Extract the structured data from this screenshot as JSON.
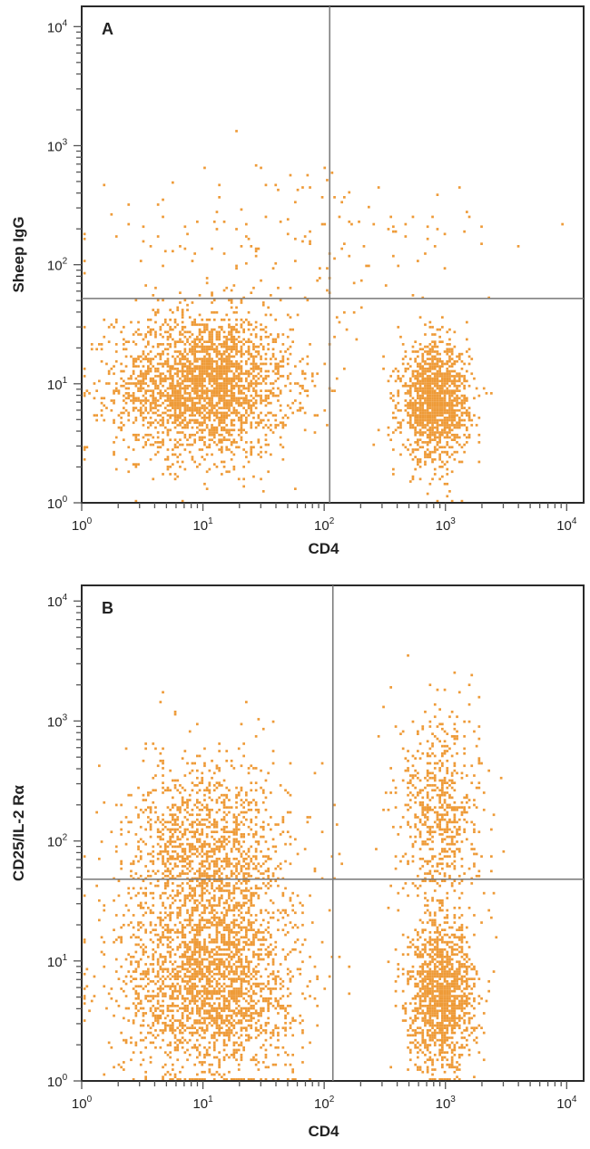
{
  "chart_data": [
    {
      "type": "scatter",
      "panel_label": "A",
      "xlabel": "CD4",
      "ylabel": "Sheep IgG",
      "x_scale": "log",
      "y_scale": "log",
      "xlim": [
        1,
        13800
      ],
      "ylim": [
        1,
        14800
      ],
      "x_ticks": [
        {
          "base": "10",
          "exp": "0"
        },
        {
          "base": "10",
          "exp": "1"
        },
        {
          "base": "10",
          "exp": "2"
        },
        {
          "base": "10",
          "exp": "3"
        },
        {
          "base": "10",
          "exp": "4"
        }
      ],
      "y_ticks": [
        {
          "base": "10",
          "exp": "0"
        },
        {
          "base": "10",
          "exp": "1"
        },
        {
          "base": "10",
          "exp": "2"
        },
        {
          "base": "10",
          "exp": "3"
        },
        {
          "base": "10",
          "exp": "4"
        }
      ],
      "quadrant_gate": {
        "x": 111,
        "y": 52
      },
      "point_color": "#EE9B38",
      "grid": false,
      "populations": [
        {
          "center": [
            10,
            10
          ],
          "spread_decades": [
            0.36,
            0.3
          ],
          "events": 2600
        },
        {
          "center": [
            800,
            7
          ],
          "spread_decades": [
            0.14,
            0.24
          ],
          "events": 1400
        },
        {
          "center": [
            60,
            150
          ],
          "spread_decades": [
            0.9,
            0.35
          ],
          "events": 170
        }
      ]
    },
    {
      "type": "scatter",
      "panel_label": "B",
      "xlabel": "CD4",
      "ylabel": "CD25/IL-2 Rα",
      "x_scale": "log",
      "y_scale": "log",
      "xlim": [
        1,
        13800
      ],
      "ylim": [
        1,
        13500
      ],
      "x_ticks": [
        {
          "base": "10",
          "exp": "0"
        },
        {
          "base": "10",
          "exp": "1"
        },
        {
          "base": "10",
          "exp": "2"
        },
        {
          "base": "10",
          "exp": "3"
        },
        {
          "base": "10",
          "exp": "4"
        }
      ],
      "y_ticks": [
        {
          "base": "10",
          "exp": "0"
        },
        {
          "base": "10",
          "exp": "1"
        },
        {
          "base": "10",
          "exp": "2"
        },
        {
          "base": "10",
          "exp": "3"
        },
        {
          "base": "10",
          "exp": "4"
        }
      ],
      "quadrant_gate": {
        "x": 118,
        "y": 48
      },
      "point_color": "#EE9B38",
      "grid": false,
      "populations": [
        {
          "center": [
            11,
            6
          ],
          "spread_decades": [
            0.36,
            0.36
          ],
          "events": 2100
        },
        {
          "center": [
            11,
            70
          ],
          "spread_decades": [
            0.33,
            0.42
          ],
          "events": 1600
        },
        {
          "center": [
            900,
            5
          ],
          "spread_decades": [
            0.14,
            0.3
          ],
          "events": 1300
        },
        {
          "center": [
            900,
            170
          ],
          "spread_decades": [
            0.17,
            0.45
          ],
          "events": 650
        }
      ]
    }
  ]
}
